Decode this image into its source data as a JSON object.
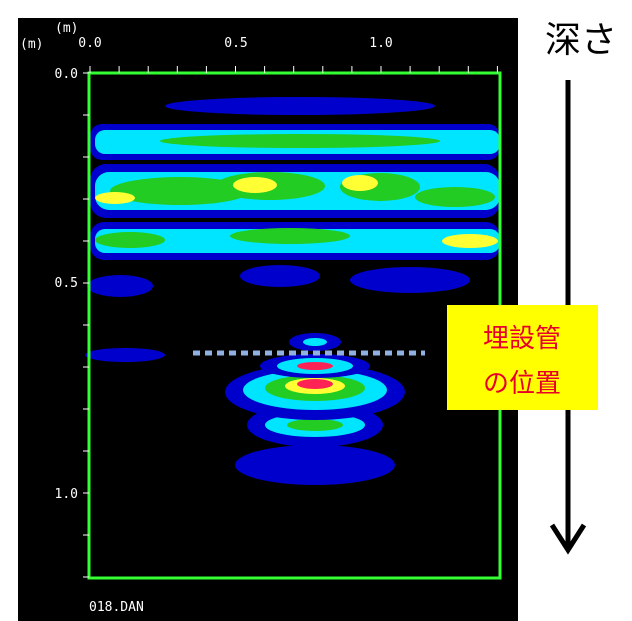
{
  "image": {
    "x_axis": {
      "unit": "(m)",
      "ticks": [
        "0.0",
        "0.5",
        "1.0"
      ]
    },
    "y_axis": {
      "unit": "(m)",
      "ticks": [
        "0.0",
        "0.5",
        "1.0"
      ]
    },
    "file_name": "018.DAN"
  },
  "annotations": {
    "depth": "深さ",
    "pipe_label": [
      "埋設管",
      "の位置"
    ]
  }
}
